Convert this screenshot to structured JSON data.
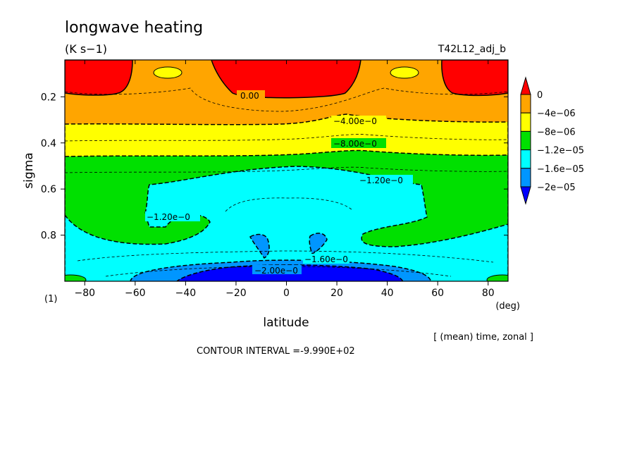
{
  "chart_data": {
    "type": "heatmap",
    "subtype": "filled-contour",
    "title": "longwave heating",
    "units": "(K s−1)",
    "run_label": "T42L12_adj_b",
    "xlabel": "latitude",
    "x_unit": "(deg)",
    "ylabel": "sigma",
    "panel_label": "(1)",
    "subtitle": "[ (mean) time, zonal ]",
    "contour_interval": "CONTOUR INTERVAL =-9.990E+02",
    "xlim": [
      -87.9,
      87.9
    ],
    "ylim": [
      1.0,
      0.04
    ],
    "x_ticks": [
      -80,
      -60,
      -40,
      -20,
      0,
      20,
      40,
      60,
      80
    ],
    "x_tick_labels": [
      "−80",
      "−60",
      "−40",
      "−20",
      "0",
      "20",
      "40",
      "60",
      "80"
    ],
    "y_ticks": [
      0.2,
      0.4,
      0.6,
      0.8
    ],
    "y_tick_labels": [
      "0.2",
      "0.4",
      "0.6",
      "0.8"
    ],
    "levels": [
      0,
      -4e-06,
      -8e-06,
      -1.2e-05,
      -1.6e-05,
      -2e-05
    ],
    "colorbar_labels": [
      "0",
      "−4e−06",
      "−8e−06",
      "−1.2e−05",
      "−1.6e−05",
      "−2e−05"
    ],
    "fill_colors": [
      "#ff0000",
      "#ffa500",
      "#ffff00",
      "#00e000",
      "#00ffff",
      "#0096ff",
      "#0000ff"
    ],
    "contour_labels": [
      {
        "text": "0.00",
        "lat": -14,
        "sigma": 0.19
      },
      {
        "text": "−4.00e−0",
        "lat": 30,
        "sigma": 0.29
      },
      {
        "text": "−8.00e−0",
        "lat": 30,
        "sigma": 0.405
      },
      {
        "text": "−1.20e−0",
        "lat": 40,
        "sigma": 0.555
      },
      {
        "text": "−1.20e−0",
        "lat": -50,
        "sigma": 0.745
      },
      {
        "text": "−1.60e−0",
        "lat": 16,
        "sigma": 0.895
      },
      {
        "text": "−2.00e−0",
        "lat": -7,
        "sigma": 0.94
      }
    ]
  }
}
